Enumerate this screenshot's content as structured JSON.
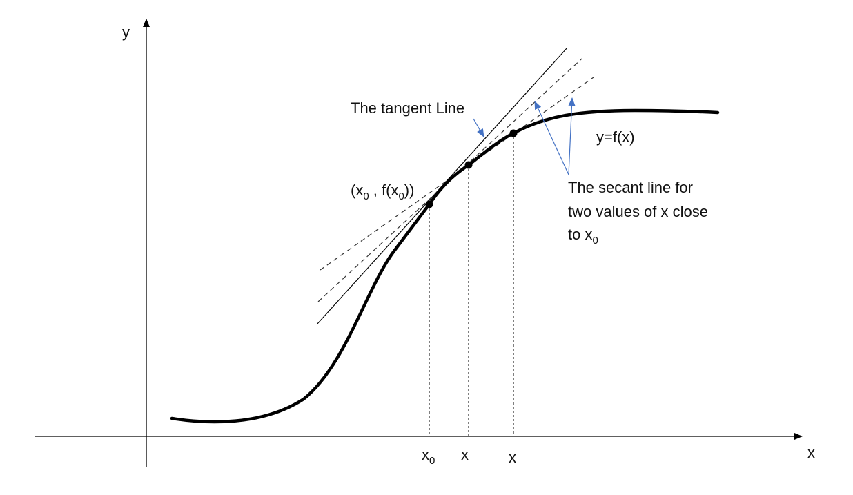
{
  "colors": {
    "curve": "#000000",
    "tangent": "#000000",
    "secant": "#333333",
    "guide": "#000000",
    "arrow_accent": "#4472c4",
    "background": "#ffffff"
  },
  "axes": {
    "x_label": "x",
    "y_label": "y"
  },
  "labels": {
    "curve": "y=f(x)",
    "tangent": "The tangent Line",
    "point": {
      "open": "(x",
      "sub": "0",
      "mid": " , f(x",
      "sub2": "0",
      "close": "))"
    },
    "secant_lines": [
      "The secant line for",
      "two values of x close"
    ],
    "secant_last": {
      "text": "to x",
      "sub": "0"
    }
  },
  "ticks": [
    {
      "text": "x",
      "sub": "0"
    },
    {
      "text": "x",
      "sub": ""
    },
    {
      "text": "x",
      "sub": ""
    }
  ]
}
